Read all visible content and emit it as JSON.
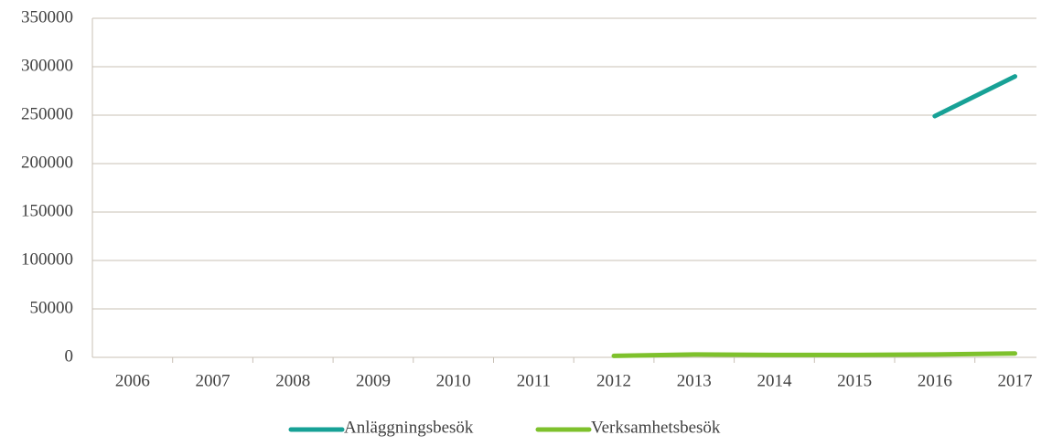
{
  "chart_data": {
    "type": "line",
    "categories": [
      "2006",
      "2007",
      "2008",
      "2009",
      "2010",
      "2011",
      "2012",
      "2013",
      "2014",
      "2015",
      "2016",
      "2017"
    ],
    "series": [
      {
        "name": "Anläggningsbesök",
        "color": "#17a196",
        "values": [
          null,
          null,
          null,
          null,
          null,
          null,
          null,
          null,
          null,
          null,
          249000,
          290000
        ]
      },
      {
        "name": "Verksamhetsbesök",
        "color": "#7ec12c",
        "values": [
          null,
          null,
          null,
          null,
          null,
          null,
          1500,
          3000,
          2500,
          2500,
          3000,
          4000
        ]
      }
    ],
    "ylim": [
      0,
      350000
    ],
    "yticks": [
      0,
      50000,
      100000,
      150000,
      200000,
      250000,
      300000,
      350000
    ],
    "grid": true,
    "legend": "bottom"
  }
}
